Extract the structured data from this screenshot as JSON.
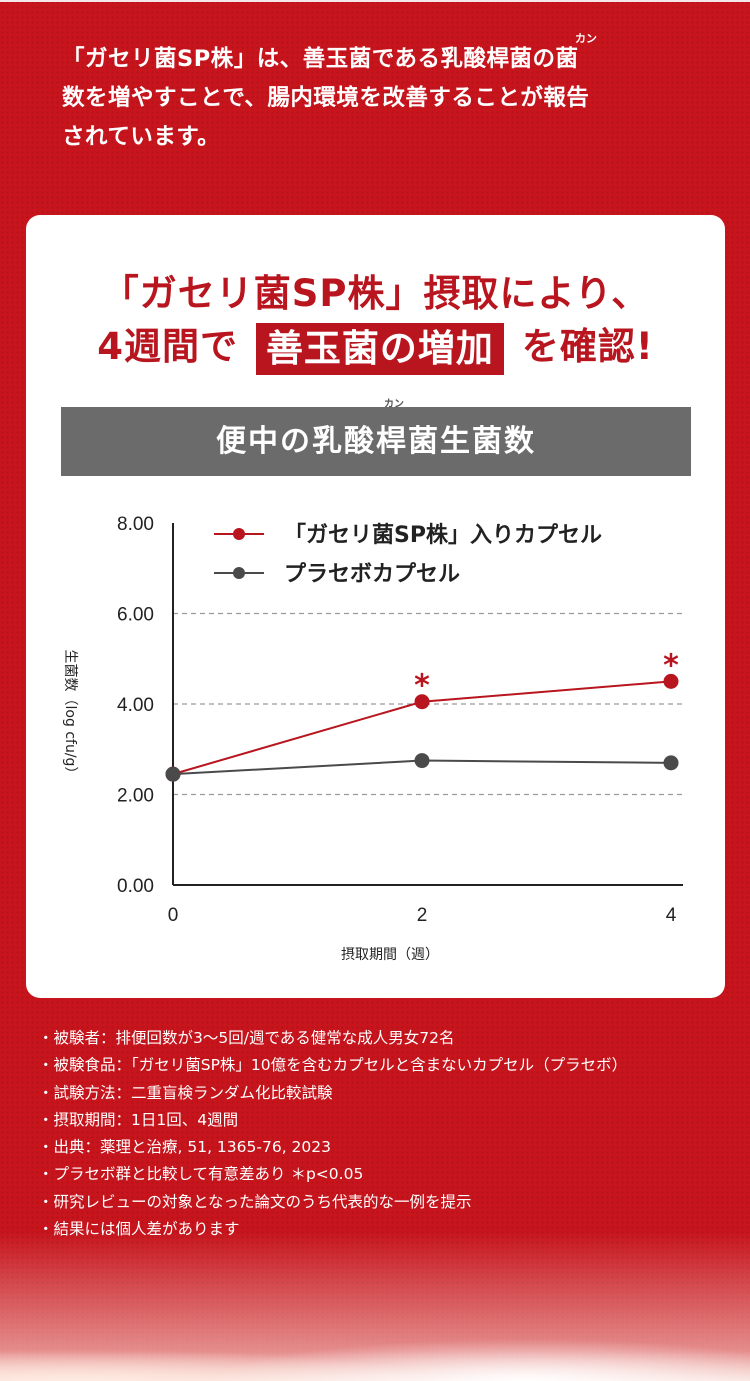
{
  "intro": {
    "text": "「ガセリ菌SP株」は、善玉菌である乳酸桿菌の菌\n数を増やすことで、腸内環境を改善することが報告\nされています。",
    "ruby": "カン"
  },
  "headline": {
    "line1": "「ガセリ菌SP株」摂取により、",
    "line2_before": "4週間で",
    "line2_highlight": "善玉菌の増加",
    "line2_after": "を確認!"
  },
  "chart_title": "便中の乳酸桿菌生菌数",
  "chart_title_ruby": "カン",
  "chart_data": {
    "type": "line",
    "title": "便中の乳酸桿菌生菌数",
    "xlabel": "摂取期間（週）",
    "ylabel": "生菌数（log cfu/g）",
    "x": [
      0,
      2,
      4
    ],
    "x_tick_labels": [
      "0",
      "2",
      "4"
    ],
    "ylim": [
      0,
      8
    ],
    "y_ticks": [
      0,
      2,
      4,
      6,
      8
    ],
    "y_tick_labels": [
      "0.00",
      "2.00",
      "4.00",
      "6.00",
      "8.00"
    ],
    "grid": "dashed horizontal",
    "legend": "top",
    "series": [
      {
        "name": "「ガセリ菌SP株」入りカプセル",
        "values": [
          2.45,
          4.05,
          4.5
        ],
        "color": "#b8151f",
        "markers": [
          "",
          "*",
          "*"
        ]
      },
      {
        "name": "プラセボカプセル",
        "values": [
          2.45,
          2.75,
          2.7
        ],
        "color": "#4a4a4a"
      }
    ]
  },
  "footnotes": [
    "・被験者：排便回数が3～5回/週である健常な成人男女72名",
    "・被験食品：「ガセリ菌SP株」10億を含むカプセルと含まないカプセル（プラセボ）",
    "・試験方法：二重盲検ランダム化比較試験",
    "・摂取期間：1日1回、4週間",
    "・出典：薬理と治療, 51, 1365-76, 2023",
    "・プラセボ群と比較して有意差あり ＊p<0.05",
    "・研究レビューの対象となった論文のうち代表的な一例を提示",
    "・結果には個人差があります"
  ]
}
